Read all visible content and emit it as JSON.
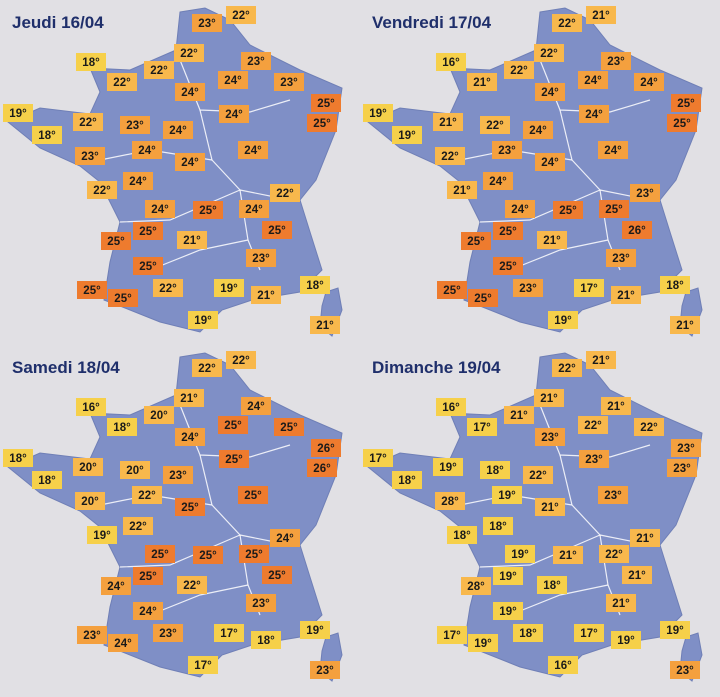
{
  "panels": [
    {
      "title": "Jeudi 16/04",
      "labels": [
        {
          "text": "23°",
          "color": "#f4a03e"
        },
        {
          "text": "22°",
          "color": "#f8b84c"
        },
        {
          "text": "18°",
          "color": "#f6d04a"
        },
        {
          "text": "22°",
          "color": "#f8b84c"
        },
        {
          "text": "22°",
          "color": "#f8b84c"
        },
        {
          "text": "23°",
          "color": "#f4a03e"
        },
        {
          "text": "22°",
          "color": "#f8b84c"
        },
        {
          "text": "24°",
          "color": "#f4a03e"
        },
        {
          "text": "24°",
          "color": "#f4a03e"
        },
        {
          "text": "23°",
          "color": "#f4a03e"
        },
        {
          "text": "19°",
          "color": "#f6d04a"
        },
        {
          "text": "25°",
          "color": "#ee7b2e"
        },
        {
          "text": "22°",
          "color": "#f8b84c"
        },
        {
          "text": "23°",
          "color": "#f4a03e"
        },
        {
          "text": "24°",
          "color": "#f4a03e"
        },
        {
          "text": "24°",
          "color": "#f4a03e"
        },
        {
          "text": "25°",
          "color": "#ee7b2e"
        },
        {
          "text": "18°",
          "color": "#f6d04a"
        },
        {
          "text": "23°",
          "color": "#f4a03e"
        },
        {
          "text": "24°",
          "color": "#f4a03e"
        },
        {
          "text": "24°",
          "color": "#f4a03e"
        },
        {
          "text": "24°",
          "color": "#f4a03e"
        },
        {
          "text": "24°",
          "color": "#f4a03e"
        },
        {
          "text": "22°",
          "color": "#f8b84c"
        },
        {
          "text": "22°",
          "color": "#f8b84c"
        },
        {
          "text": "24°",
          "color": "#f4a03e"
        },
        {
          "text": "25°",
          "color": "#ee7b2e"
        },
        {
          "text": "24°",
          "color": "#f4a03e"
        },
        {
          "text": "25°",
          "color": "#ee7b2e"
        },
        {
          "text": "25°",
          "color": "#ee7b2e"
        },
        {
          "text": "21°",
          "color": "#f8b84c"
        },
        {
          "text": "25°",
          "color": "#ee7b2e"
        },
        {
          "text": "23°",
          "color": "#f4a03e"
        },
        {
          "text": "25°",
          "color": "#ee7b2e"
        },
        {
          "text": "18°",
          "color": "#f6d04a"
        },
        {
          "text": "25°",
          "color": "#ee7b2e"
        },
        {
          "text": "25°",
          "color": "#ee7b2e"
        },
        {
          "text": "22°",
          "color": "#f8b84c"
        },
        {
          "text": "19°",
          "color": "#f6d04a"
        },
        {
          "text": "21°",
          "color": "#f8b84c"
        },
        {
          "text": "19°",
          "color": "#f6d04a"
        },
        {
          "text": "21°",
          "color": "#f8b84c"
        }
      ]
    },
    {
      "title": "Vendredi 17/04",
      "labels": [
        {
          "text": "22°",
          "color": "#f8b84c"
        },
        {
          "text": "21°",
          "color": "#f8b84c"
        },
        {
          "text": "16°",
          "color": "#f6d04a"
        },
        {
          "text": "22°",
          "color": "#f8b84c"
        },
        {
          "text": "22°",
          "color": "#f8b84c"
        },
        {
          "text": "23°",
          "color": "#f4a03e"
        },
        {
          "text": "21°",
          "color": "#f8b84c"
        },
        {
          "text": "24°",
          "color": "#f4a03e"
        },
        {
          "text": "24°",
          "color": "#f4a03e"
        },
        {
          "text": "24°",
          "color": "#f4a03e"
        },
        {
          "text": "19°",
          "color": "#f6d04a"
        },
        {
          "text": "25°",
          "color": "#ee7b2e"
        },
        {
          "text": "21°",
          "color": "#f8b84c"
        },
        {
          "text": "22°",
          "color": "#f8b84c"
        },
        {
          "text": "24°",
          "color": "#f4a03e"
        },
        {
          "text": "24°",
          "color": "#f4a03e"
        },
        {
          "text": "25°",
          "color": "#ee7b2e"
        },
        {
          "text": "19°",
          "color": "#f6d04a"
        },
        {
          "text": "22°",
          "color": "#f8b84c"
        },
        {
          "text": "23°",
          "color": "#f4a03e"
        },
        {
          "text": "24°",
          "color": "#f4a03e"
        },
        {
          "text": "24°",
          "color": "#f4a03e"
        },
        {
          "text": "24°",
          "color": "#f4a03e"
        },
        {
          "text": "21°",
          "color": "#f8b84c"
        },
        {
          "text": "23°",
          "color": "#f4a03e"
        },
        {
          "text": "24°",
          "color": "#f4a03e"
        },
        {
          "text": "25°",
          "color": "#ee7b2e"
        },
        {
          "text": "25°",
          "color": "#ee7b2e"
        },
        {
          "text": "25°",
          "color": "#ee7b2e"
        },
        {
          "text": "25°",
          "color": "#ee7b2e"
        },
        {
          "text": "21°",
          "color": "#f8b84c"
        },
        {
          "text": "26°",
          "color": "#ee7b2e"
        },
        {
          "text": "23°",
          "color": "#f4a03e"
        },
        {
          "text": "25°",
          "color": "#ee7b2e"
        },
        {
          "text": "18°",
          "color": "#f6d04a"
        },
        {
          "text": "25°",
          "color": "#ee7b2e"
        },
        {
          "text": "25°",
          "color": "#ee7b2e"
        },
        {
          "text": "23°",
          "color": "#f4a03e"
        },
        {
          "text": "17°",
          "color": "#f6d04a"
        },
        {
          "text": "21°",
          "color": "#f8b84c"
        },
        {
          "text": "19°",
          "color": "#f6d04a"
        },
        {
          "text": "21°",
          "color": "#f8b84c"
        }
      ]
    },
    {
      "title": "Samedi 18/04",
      "labels": [
        {
          "text": "22°",
          "color": "#f8b84c"
        },
        {
          "text": "22°",
          "color": "#f8b84c"
        },
        {
          "text": "16°",
          "color": "#f6d04a"
        },
        {
          "text": "21°",
          "color": "#f8b84c"
        },
        {
          "text": "20°",
          "color": "#f8b84c"
        },
        {
          "text": "24°",
          "color": "#f4a03e"
        },
        {
          "text": "18°",
          "color": "#f6d04a"
        },
        {
          "text": "24°",
          "color": "#f4a03e"
        },
        {
          "text": "25°",
          "color": "#ee7b2e"
        },
        {
          "text": "25°",
          "color": "#ee7b2e"
        },
        {
          "text": "18°",
          "color": "#f6d04a"
        },
        {
          "text": "26°",
          "color": "#ee7b2e"
        },
        {
          "text": "20°",
          "color": "#f8b84c"
        },
        {
          "text": "20°",
          "color": "#f8b84c"
        },
        {
          "text": "23°",
          "color": "#f4a03e"
        },
        {
          "text": "25°",
          "color": "#ee7b2e"
        },
        {
          "text": "26°",
          "color": "#ee7b2e"
        },
        {
          "text": "18°",
          "color": "#f6d04a"
        },
        {
          "text": "20°",
          "color": "#f8b84c"
        },
        {
          "text": "22°",
          "color": "#f8b84c"
        },
        {
          "text": "25°",
          "color": "#ee7b2e"
        },
        {
          "text": "25°",
          "color": "#ee7b2e"
        },
        {
          "text": "22°",
          "color": "#f8b84c"
        },
        {
          "text": "19°",
          "color": "#f6d04a"
        },
        {
          "text": "24°",
          "color": "#f4a03e"
        },
        {
          "text": "25°",
          "color": "#ee7b2e"
        },
        {
          "text": "25°",
          "color": "#ee7b2e"
        },
        {
          "text": "25°",
          "color": "#ee7b2e"
        },
        {
          "text": "24°",
          "color": "#f4a03e"
        },
        {
          "text": "25°",
          "color": "#ee7b2e"
        },
        {
          "text": "22°",
          "color": "#f8b84c"
        },
        {
          "text": "25°",
          "color": "#ee7b2e"
        },
        {
          "text": "23°",
          "color": "#f4a03e"
        },
        {
          "text": "24°",
          "color": "#f4a03e"
        },
        {
          "text": "19°",
          "color": "#f6d04a"
        },
        {
          "text": "23°",
          "color": "#f4a03e"
        },
        {
          "text": "24°",
          "color": "#f4a03e"
        },
        {
          "text": "23°",
          "color": "#f4a03e"
        },
        {
          "text": "17°",
          "color": "#f6d04a"
        },
        {
          "text": "18°",
          "color": "#f6d04a"
        },
        {
          "text": "17°",
          "color": "#f6d04a"
        },
        {
          "text": "23°",
          "color": "#f4a03e"
        }
      ]
    },
    {
      "title": "Dimanche 19/04",
      "labels": [
        {
          "text": "22°",
          "color": "#f8b84c"
        },
        {
          "text": "21°",
          "color": "#f8b84c"
        },
        {
          "text": "16°",
          "color": "#f6d04a"
        },
        {
          "text": "21°",
          "color": "#f8b84c"
        },
        {
          "text": "21°",
          "color": "#f8b84c"
        },
        {
          "text": "21°",
          "color": "#f8b84c"
        },
        {
          "text": "17°",
          "color": "#f6d04a"
        },
        {
          "text": "23°",
          "color": "#f4a03e"
        },
        {
          "text": "22°",
          "color": "#f8b84c"
        },
        {
          "text": "22°",
          "color": "#f8b84c"
        },
        {
          "text": "17°",
          "color": "#f6d04a"
        },
        {
          "text": "23°",
          "color": "#f4a03e"
        },
        {
          "text": "19°",
          "color": "#f6d04a"
        },
        {
          "text": "18°",
          "color": "#f6d04a"
        },
        {
          "text": "22°",
          "color": "#f8b84c"
        },
        {
          "text": "23°",
          "color": "#f4a03e"
        },
        {
          "text": "23°",
          "color": "#f4a03e"
        },
        {
          "text": "18°",
          "color": "#f6d04a"
        },
        {
          "text": "28°",
          "color": "#f8b84c"
        },
        {
          "text": "19°",
          "color": "#f6d04a"
        },
        {
          "text": "21°",
          "color": "#f8b84c"
        },
        {
          "text": "23°",
          "color": "#f4a03e"
        },
        {
          "text": "18°",
          "color": "#f6d04a"
        },
        {
          "text": "18°",
          "color": "#f6d04a"
        },
        {
          "text": "21°",
          "color": "#f8b84c"
        },
        {
          "text": "19°",
          "color": "#f6d04a"
        },
        {
          "text": "21°",
          "color": "#f8b84c"
        },
        {
          "text": "22°",
          "color": "#f8b84c"
        },
        {
          "text": "28°",
          "color": "#f8b84c"
        },
        {
          "text": "19°",
          "color": "#f6d04a"
        },
        {
          "text": "18°",
          "color": "#f6d04a"
        },
        {
          "text": "21°",
          "color": "#f8b84c"
        },
        {
          "text": "21°",
          "color": "#f8b84c"
        },
        {
          "text": "19°",
          "color": "#f6d04a"
        },
        {
          "text": "19°",
          "color": "#f6d04a"
        },
        {
          "text": "17°",
          "color": "#f6d04a"
        },
        {
          "text": "19°",
          "color": "#f6d04a"
        },
        {
          "text": "18°",
          "color": "#f6d04a"
        },
        {
          "text": "17°",
          "color": "#f6d04a"
        },
        {
          "text": "19°",
          "color": "#f6d04a"
        },
        {
          "text": "16°",
          "color": "#f6d04a"
        },
        {
          "text": "23°",
          "color": "#f4a03e"
        }
      ]
    }
  ]
}
